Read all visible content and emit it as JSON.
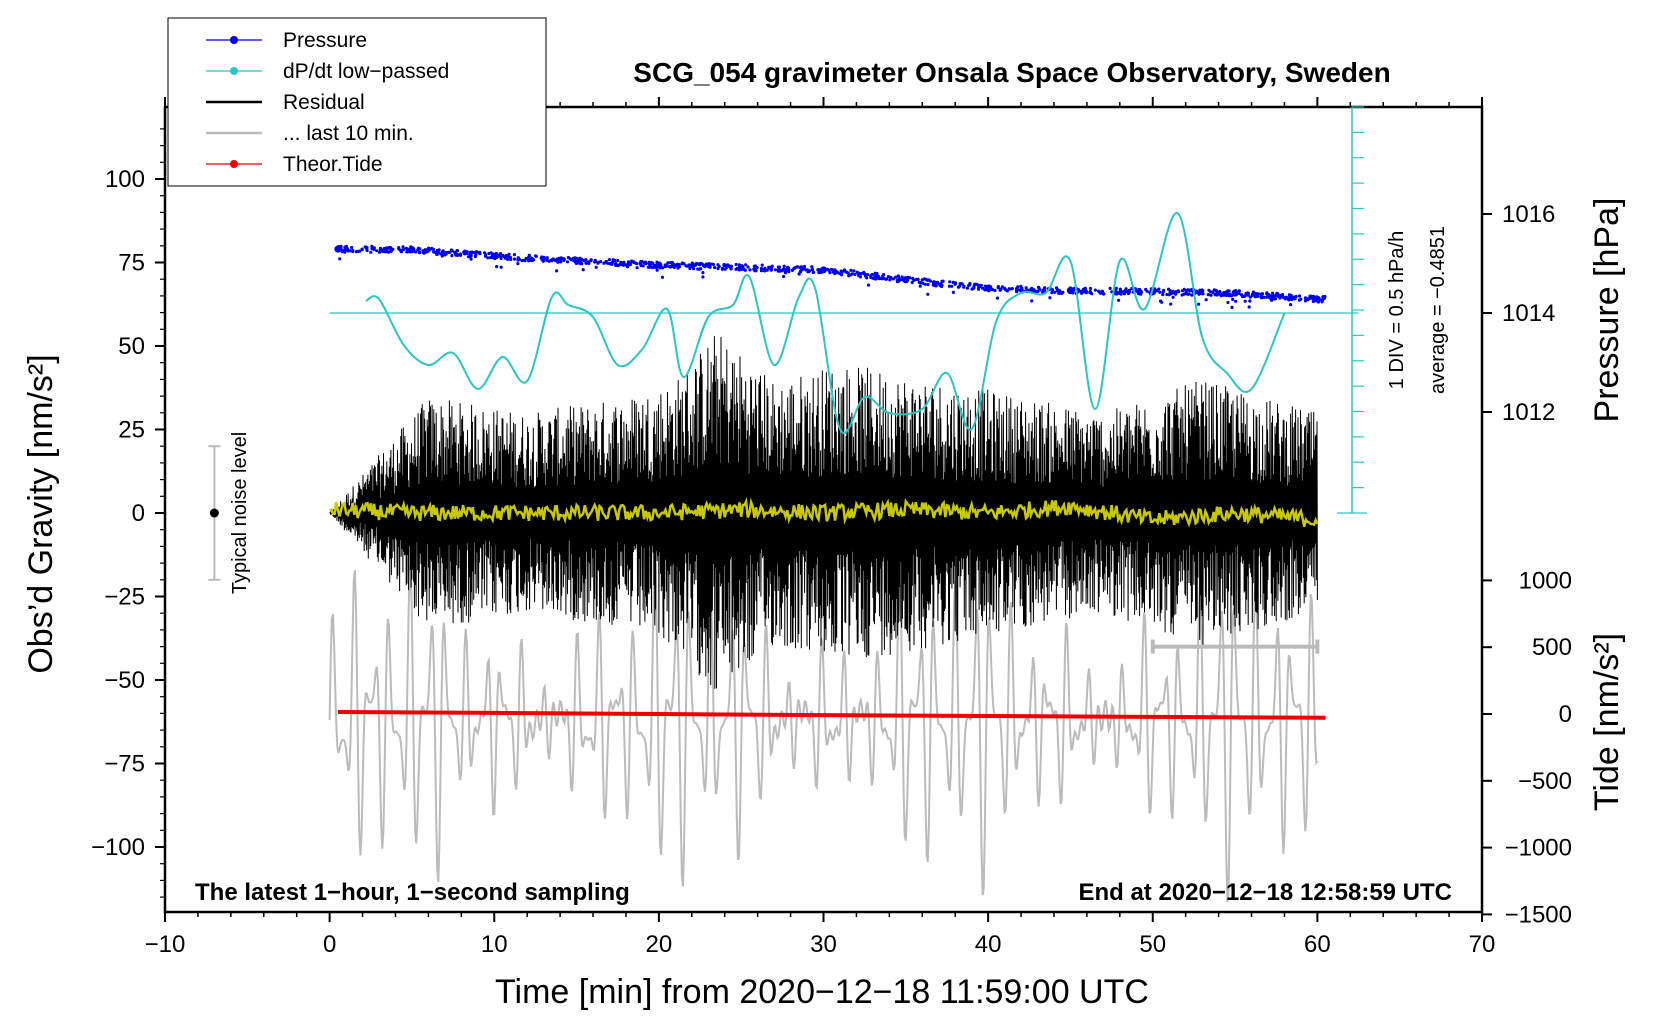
{
  "chart_data": {
    "type": "line",
    "title": "SCG_054 gravimeter Onsala Space Observatory, Sweden",
    "xlabel": "Time [min] from 2020−12−18 11:59:00 UTC",
    "ylabel": "Obs’d Gravity [nm/s²]",
    "ylabel_right_top": "Pressure [hPa]",
    "ylabel_right_bottom": "Tide [nm/s²]",
    "xlim": [
      -10,
      70
    ],
    "ylim": [
      -120,
      120
    ],
    "pressure_ylim": [
      1010,
      1018
    ],
    "tide_ylim": [
      -1500,
      1000
    ],
    "x_ticks": [
      -10,
      0,
      10,
      20,
      30,
      40,
      50,
      60,
      70
    ],
    "x_tick_labels": [
      "−10",
      "0",
      "10",
      "20",
      "30",
      "40",
      "50",
      "60",
      "70"
    ],
    "y_ticks": [
      100,
      75,
      50,
      25,
      0,
      -25,
      -50,
      -75,
      -100
    ],
    "y_tick_labels": [
      "100",
      "75",
      "50",
      "25",
      "0",
      "−25",
      "−50",
      "−75",
      "−100"
    ],
    "pressure_ticks": [
      1016,
      1014,
      1012
    ],
    "pressure_tick_labels": [
      "1016",
      "1014",
      "1012"
    ],
    "tide_ticks": [
      1000,
      500,
      0,
      -500,
      -1000,
      -1500
    ],
    "tide_tick_labels": [
      "1000",
      "500",
      "0",
      "−500",
      "−1000",
      "−1500"
    ],
    "legend": [
      {
        "label": "Pressure",
        "color": "#0000ee",
        "marker": true
      },
      {
        "label": "dP/dt low−passed",
        "color": "#2ec4c4",
        "marker": true
      },
      {
        "label": "Residual",
        "color": "#000000",
        "marker": false
      },
      {
        "label": "... last 10 min.",
        "color": "#bbbbbb",
        "marker": false
      },
      {
        "label": "Theor.Tide",
        "color": "#ee0000",
        "marker": true
      }
    ],
    "series": [
      {
        "name": "Pressure",
        "axis": "pressure",
        "color": "#0000ee",
        "x": [
          0.5,
          5,
          10,
          15,
          20,
          25,
          30,
          35,
          40,
          45,
          50,
          55,
          60
        ],
        "values": [
          1015.29,
          1015.28,
          1015.15,
          1015.06,
          1014.97,
          1014.92,
          1014.87,
          1014.67,
          1014.5,
          1014.45,
          1014.43,
          1014.4,
          1014.28
        ]
      },
      {
        "name": "dP/dt low−passed",
        "axis": "dpdt",
        "color": "#2ec4c4",
        "x": [
          2.2,
          3,
          4.5,
          6,
          7.5,
          9,
          10.5,
          12,
          13.5,
          14.5,
          16,
          17.5,
          19,
          20.5,
          21.5,
          23,
          24.5,
          25.5,
          27,
          28.5,
          29.5,
          31,
          32.5,
          34,
          36,
          37.5,
          39,
          40.5,
          42,
          43.5,
          45,
          46.5,
          48,
          49.5,
          51.5,
          53,
          54.5,
          56,
          58
        ],
        "values": [
          0.3,
          0.35,
          -0.8,
          -1.3,
          -1.0,
          -1.9,
          -1.1,
          -1.7,
          0.4,
          0.2,
          -0.1,
          -1.3,
          -0.9,
          0.1,
          -1.6,
          -0.1,
          0.2,
          0.9,
          -1.3,
          0.4,
          0.6,
          -2.9,
          -2.1,
          -2.5,
          -2.4,
          -1.5,
          -2.9,
          -0.2,
          0.5,
          0.5,
          1.3,
          -2.4,
          1.3,
          0.1,
          2.5,
          -0.6,
          -1.5,
          -1.9,
          0.0
        ]
      },
      {
        "name": "Residual",
        "axis": "gravity",
        "color": "#000000",
        "x": [
          0,
          6,
          12,
          18,
          21,
          23.5,
          27,
          31,
          37,
          42,
          47,
          53,
          60
        ],
        "values": [
          0,
          35,
          30,
          35,
          40,
          55,
          40,
          45,
          40,
          35,
          30,
          40,
          30
        ]
      },
      {
        "name": "Residual (smoothed)",
        "axis": "gravity",
        "color": "#c8c800",
        "x": [
          0,
          5,
          10,
          15,
          20,
          25,
          30,
          35,
          40,
          45,
          50,
          55,
          60
        ],
        "values": [
          1,
          0,
          0,
          0,
          0,
          1,
          0,
          1,
          0,
          2,
          -2,
          0,
          -2
        ]
      },
      {
        "name": "... last 10 min.",
        "axis": "gravity",
        "color": "#bbbbbb",
        "x": [
          0,
          60
        ],
        "values": [
          -62,
          -62
        ]
      },
      {
        "name": "Theor.Tide",
        "axis": "tide",
        "color": "#ee0000",
        "x": [
          0.5,
          10,
          20,
          30,
          40,
          50,
          60.5
        ],
        "values": [
          15,
          8,
          0,
          -8,
          -15,
          -22,
          -28
        ]
      }
    ],
    "dpdt_scale_label": "1 DIV = 0.5 hPa/h",
    "dpdt_average_label": "average = −0.4851",
    "noise_bar": {
      "x": -7,
      "center": 0,
      "half_range": 20,
      "label": "Typical noise level"
    },
    "window_bar": {
      "x_start": 50,
      "x_end": 60,
      "y": -40
    },
    "annotation_left": "The latest 1−hour, 1−second sampling",
    "annotation_right": "End at 2020−12−18 12:58:59 UTC"
  }
}
